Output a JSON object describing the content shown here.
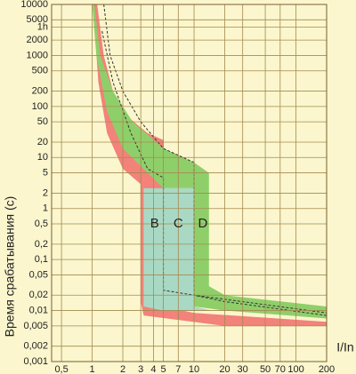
{
  "chart_data": {
    "type": "area",
    "ylabel": "Время срабатывания (с)",
    "xlabel": "I/In",
    "xlog": true,
    "ylog": true,
    "grid": true,
    "xlim": [
      0.4,
      200
    ],
    "ylim": [
      0.001,
      10000
    ],
    "xticks": [
      {
        "value": 0.5,
        "label": "0,5"
      },
      1,
      2,
      3,
      4,
      5,
      7,
      10,
      20,
      30,
      50,
      70,
      100,
      200
    ],
    "yticks": [
      10000,
      5000,
      {
        "value": 3600,
        "label": "1h"
      },
      2000,
      1000,
      500,
      200,
      100,
      50,
      20,
      10,
      5,
      2,
      1,
      {
        "value": 0.5,
        "label": "0,5"
      },
      {
        "value": 0.2,
        "label": "0,2"
      },
      {
        "value": 0.1,
        "label": "0,1"
      },
      {
        "value": 0.05,
        "label": "0,05"
      },
      {
        "value": 0.02,
        "label": "0,02"
      },
      {
        "value": 0.01,
        "label": "0,01"
      },
      {
        "value": 0.005,
        "label": "0,005"
      },
      {
        "value": 0.002,
        "label": "0,002"
      },
      {
        "value": 0.001,
        "label": "0,001"
      }
    ],
    "series": [
      {
        "name": "B",
        "color": "#f2827a",
        "x": [
          1.12,
          1.3,
          1.6,
          2.3,
          3.5,
          5,
          5,
          10,
          200,
          200,
          20,
          3.2,
          3,
          3,
          2,
          1.4,
          1.15,
          1.02
        ],
        "values": [
          10000,
          1000,
          200,
          60,
          30,
          22,
          0.012,
          0.009,
          0.006,
          0.005,
          0.005,
          0.008,
          0.015,
          3,
          6,
          30,
          300,
          10000
        ]
      },
      {
        "name": "D",
        "color": "#8fcf6a",
        "x": [
          1.05,
          1.2,
          1.6,
          2.5,
          5,
          10,
          14,
          14,
          20,
          200,
          200,
          20,
          10,
          10,
          5,
          3.5,
          2,
          1.4,
          1.1,
          1
        ],
        "values": [
          10000,
          1000,
          200,
          50,
          15,
          8,
          5,
          0.03,
          0.02,
          0.012,
          0.007,
          0.01,
          0.012,
          2.5,
          2.5,
          5,
          15,
          80,
          1000,
          10000
        ]
      },
      {
        "name": "C",
        "color": "#a9d9c4",
        "x": [
          3.2,
          10,
          10,
          15,
          5,
          3.2
        ],
        "values": [
          2.5,
          2.5,
          0.012,
          0.01,
          0.01,
          0.012
        ]
      }
    ],
    "lines": [
      {
        "color": "#333333",
        "x": [
          1.3,
          1.5,
          2,
          3,
          5,
          10,
          10,
          20,
          200
        ],
        "values": [
          10000,
          1000,
          200,
          50,
          15,
          8,
          0.02,
          0.015,
          0.008
        ]
      },
      {
        "color": "#333333",
        "x": [
          1.25,
          1.6,
          2.4,
          3.5,
          5,
          5,
          10,
          200
        ],
        "values": [
          3000,
          300,
          30,
          6,
          4,
          0.025,
          0.02,
          0.009
        ]
      }
    ]
  }
}
